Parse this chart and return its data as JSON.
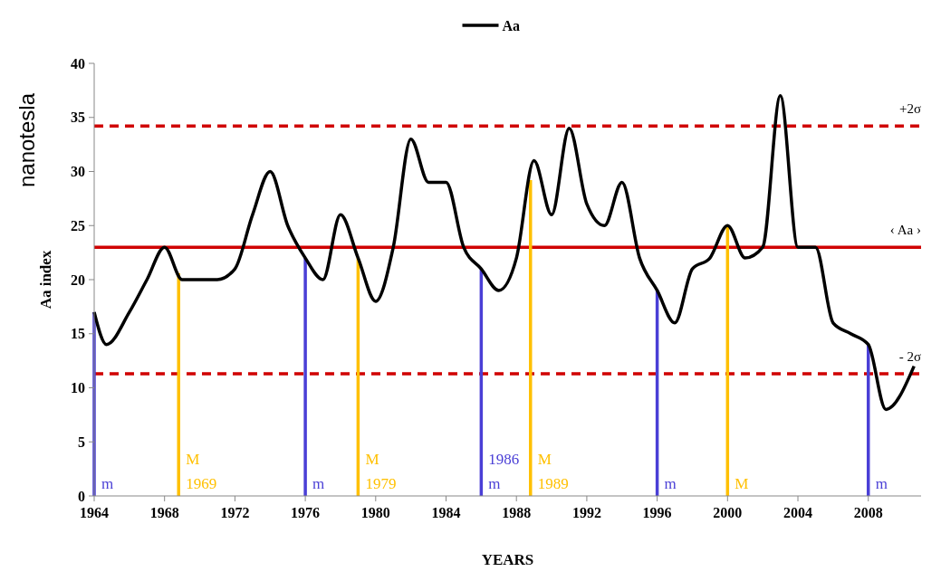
{
  "chart_data": {
    "type": "line",
    "xlabel": "YEARS",
    "ylabel": "Aa index",
    "annotations": [
      "nanotesla"
    ],
    "x": [
      1964,
      1964.7,
      1966,
      1967,
      1968,
      1969,
      1970,
      1971,
      1972,
      1973,
      1974,
      1975,
      1976,
      1977,
      1978,
      1979,
      1980,
      1981,
      1982,
      1983,
      1984,
      1985,
      1986,
      1987,
      1988,
      1989,
      1990,
      1991,
      1992,
      1993,
      1994,
      1995,
      1996,
      1997,
      1998,
      1999,
      2000,
      2001,
      2002,
      2003,
      2004,
      2005,
      2006,
      2007,
      2008,
      2009,
      2010.6
    ],
    "series": [
      {
        "name": "Aa",
        "color": "#000000",
        "values": [
          17,
          14,
          17,
          20,
          23,
          20,
          20,
          20,
          21,
          26,
          30,
          25,
          22,
          20,
          26,
          22,
          18,
          23,
          33,
          29,
          29,
          23,
          21,
          19,
          22,
          31,
          26,
          34,
          27,
          25,
          29,
          22,
          19,
          16,
          21,
          22,
          25,
          22,
          23,
          37,
          23,
          23,
          16,
          15,
          14,
          8,
          12
        ]
      }
    ],
    "xlim": [
      1964,
      2011
    ],
    "xticks": [
      1964,
      1968,
      1972,
      1976,
      1980,
      1984,
      1988,
      1992,
      1996,
      2000,
      2004,
      2008
    ],
    "ylim": [
      0,
      40
    ],
    "yticks": [
      0,
      5,
      10,
      15,
      20,
      25,
      30,
      35,
      40
    ],
    "grid": false,
    "legend": "top",
    "marker": "none",
    "line_style": "solid",
    "ref_lines": [
      {
        "axis": "y",
        "value": 34.2,
        "label": "+2σ",
        "color": "#d00000",
        "line_style": "dashed"
      },
      {
        "axis": "y",
        "value": 23,
        "label": "‹ Aa ›",
        "color": "#d00000",
        "line_style": "solid"
      },
      {
        "axis": "y",
        "value": 11.3,
        "label": "- 2σ",
        "color": "#d00000",
        "line_style": "dashed"
      },
      {
        "axis": "x",
        "value": 1964,
        "label": "m",
        "color": "#4a3fd6"
      },
      {
        "axis": "x",
        "value": 1968.8,
        "label": "M\n1969",
        "color": "#ffc000"
      },
      {
        "axis": "x",
        "value": 1976,
        "label": "m",
        "color": "#4a3fd6"
      },
      {
        "axis": "x",
        "value": 1979,
        "label": "M\n1979",
        "color": "#ffc000"
      },
      {
        "axis": "x",
        "value": 1986,
        "label": "1986\nm",
        "color": "#4a3fd6"
      },
      {
        "axis": "x",
        "value": 1988.8,
        "label": "M\n1989",
        "color": "#ffc000"
      },
      {
        "axis": "x",
        "value": 1996,
        "label": "m",
        "color": "#4a3fd6"
      },
      {
        "axis": "x",
        "value": 2000,
        "label": "M",
        "color": "#ffc000"
      },
      {
        "axis": "x",
        "value": 2008,
        "label": "m",
        "color": "#4a3fd6"
      }
    ]
  }
}
